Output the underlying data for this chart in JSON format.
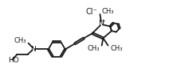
{
  "bg_color": "#ffffff",
  "line_color": "#1a1a1a",
  "text_color": "#1a1a1a",
  "figsize": [
    2.28,
    0.95
  ],
  "dpi": 100,
  "linewidth": 1.3,
  "font_size": 6.5,
  "xlim": [
    0,
    10
  ],
  "ylim": [
    0,
    4.2
  ]
}
